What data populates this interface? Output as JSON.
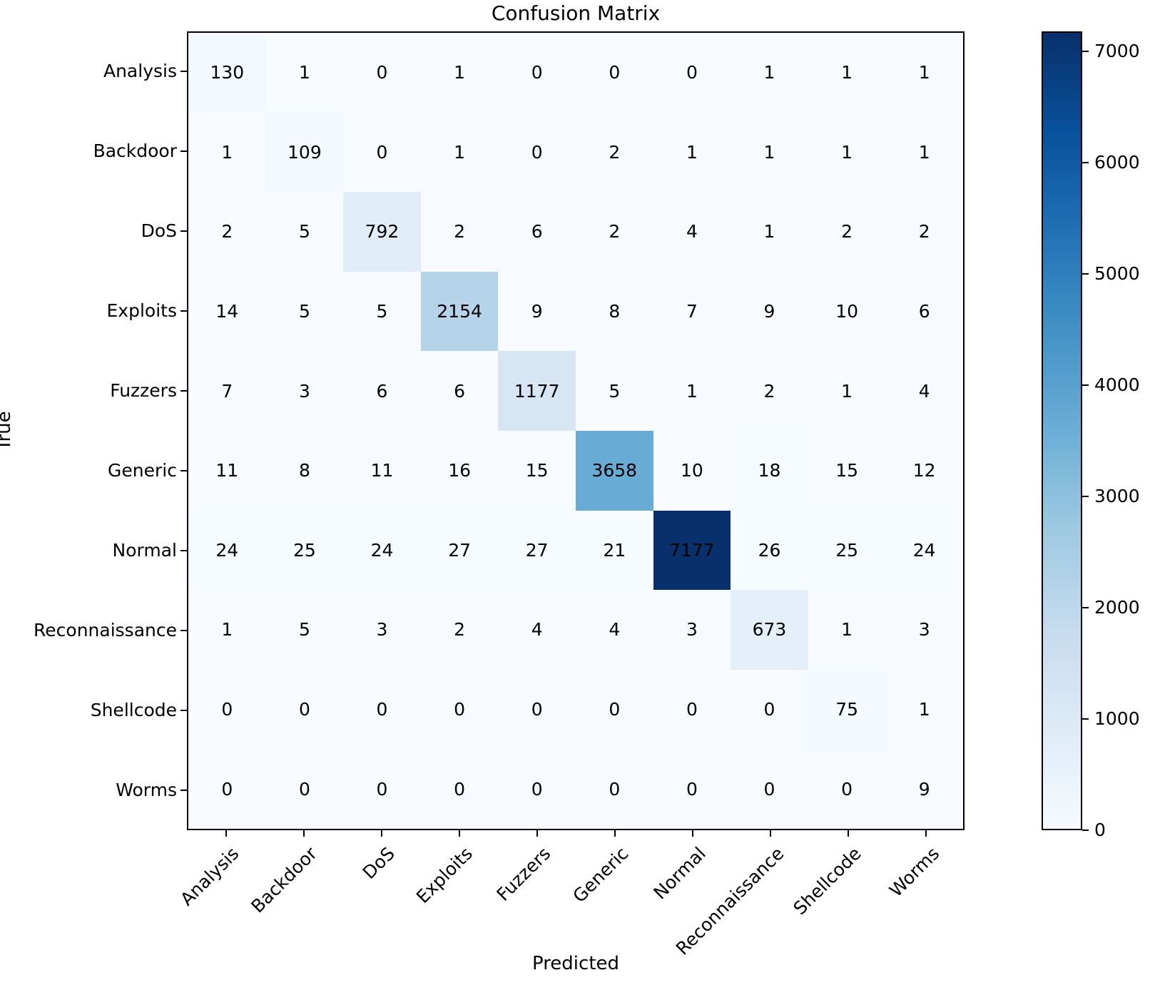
{
  "chart_data": {
    "type": "heatmap",
    "title": "Confusion Matrix",
    "xlabel": "Predicted",
    "ylabel": "True",
    "classes": [
      "Analysis",
      "Backdoor",
      "DoS",
      "Exploits",
      "Fuzzers",
      "Generic",
      "Normal",
      "Reconnaissance",
      "Shellcode",
      "Worms"
    ],
    "matrix": [
      [
        130,
        1,
        0,
        1,
        0,
        0,
        0,
        1,
        1,
        1
      ],
      [
        1,
        109,
        0,
        1,
        0,
        2,
        1,
        1,
        1,
        1
      ],
      [
        2,
        5,
        792,
        2,
        6,
        2,
        4,
        1,
        2,
        2
      ],
      [
        14,
        5,
        5,
        2154,
        9,
        8,
        7,
        9,
        10,
        6
      ],
      [
        7,
        3,
        6,
        6,
        1177,
        5,
        1,
        2,
        1,
        4
      ],
      [
        11,
        8,
        11,
        16,
        15,
        3658,
        10,
        18,
        15,
        12
      ],
      [
        24,
        25,
        24,
        27,
        27,
        21,
        7177,
        26,
        25,
        24
      ],
      [
        1,
        5,
        3,
        2,
        4,
        4,
        3,
        673,
        1,
        3
      ],
      [
        0,
        0,
        0,
        0,
        0,
        0,
        0,
        0,
        75,
        1
      ],
      [
        0,
        0,
        0,
        0,
        0,
        0,
        0,
        0,
        0,
        9
      ]
    ],
    "vmin": 0,
    "vmax": 7177,
    "colormap": "Blues",
    "colormap_stops": [
      "#f7fbff",
      "#deebf7",
      "#c6dbef",
      "#9ecae1",
      "#6baed6",
      "#4292c6",
      "#2171b5",
      "#08519c",
      "#08306b"
    ],
    "colorbar_ticks": [
      0,
      1000,
      2000,
      3000,
      4000,
      5000,
      6000,
      7000
    ],
    "legend_position": "right-colorbar",
    "grid": false,
    "cell_text_color": "#000000",
    "spine_color": "#000000",
    "background_color": "#ffffff"
  }
}
